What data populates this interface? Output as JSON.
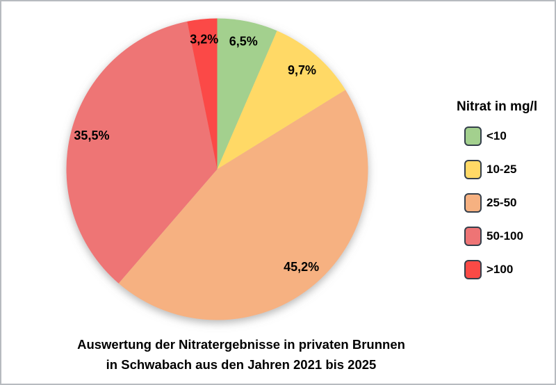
{
  "window": {
    "background": "#ffffff",
    "border_color": "#b7bbbf"
  },
  "chart_data": {
    "type": "pie",
    "title": "Auswertung der Nitratergebnisse in privaten Brunnen in Schwabach aus den Jahren 2021 bis 2025",
    "legend_title": "Nitrat in mg/l",
    "legend_position": "right",
    "start_angle_deg": 0,
    "direction": "clockwise",
    "units": "percent",
    "slices": [
      {
        "category": "<10",
        "value": 6.5,
        "label": "6,5%",
        "color": "#a3d08e"
      },
      {
        "category": "10-25",
        "value": 9.7,
        "label": "9,7%",
        "color": "#ffd966"
      },
      {
        "category": "25-50",
        "value": 45.2,
        "label": "45,2%",
        "color": "#f6b181"
      },
      {
        "category": "50-100",
        "value": 35.5,
        "label": "35,5%",
        "color": "#ee7475"
      },
      {
        "category": ">100",
        "value": 3.2,
        "label": "3,2%",
        "color": "#fb4a46"
      }
    ]
  },
  "caption": {
    "line1": "Auswertung der Nitratergebnisse in privaten Brunnen",
    "line2": "in Schwabach aus den Jahren 2021 bis 2025"
  }
}
